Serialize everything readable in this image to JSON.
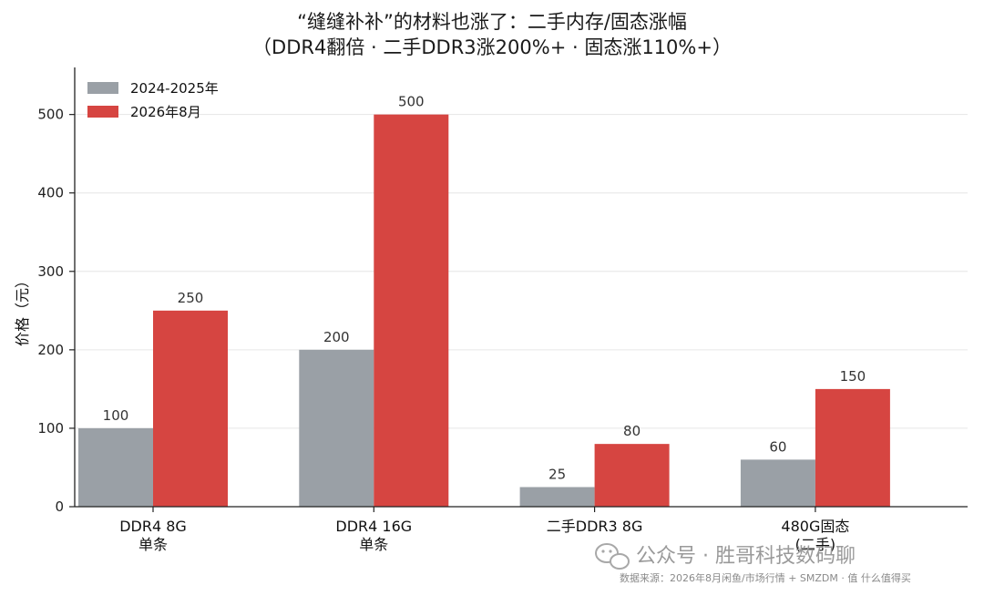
{
  "chart_data": {
    "type": "bar",
    "title": "“缝缝补补”的材料也涨了：二手内存/固态涨幅",
    "subtitle": "（DDR4翻倍 · 二手DDR3涨200%+ · 固态涨110%+）",
    "ylabel": "价格（元）",
    "xlabel": "",
    "ylim": [
      0,
      560
    ],
    "yticks": [
      0,
      100,
      200,
      300,
      400,
      500
    ],
    "grid": "horizontal",
    "legend_position": "top-left",
    "categories": [
      [
        "DDR4 8G",
        "单条"
      ],
      [
        "DDR4 16G",
        "单条"
      ],
      [
        "二手DDR3 8G"
      ],
      [
        "480G固态",
        "(二手)"
      ]
    ],
    "series": [
      {
        "name": "2024-2025年",
        "color": "#9aa0a6",
        "values": [
          100,
          200,
          25,
          60
        ]
      },
      {
        "name": "2026年8月",
        "color": "#d64541",
        "values": [
          250,
          500,
          80,
          150
        ]
      }
    ]
  },
  "watermark": {
    "brand": "公众号 · 胜哥科技数码聊",
    "source": "数据来源：2026年8月闲鱼/市场行情 + SMZDM · 值 什么值得买",
    "icon": "wechat-icon"
  }
}
